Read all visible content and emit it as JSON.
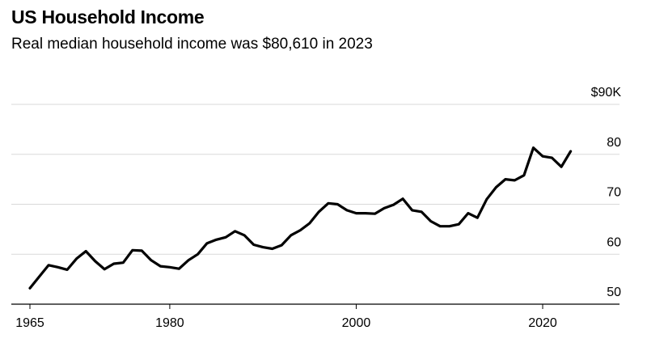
{
  "header": {
    "title": "US Household Income",
    "subtitle": "Real median household income was $80,610 in 2023"
  },
  "chart_data": {
    "type": "line",
    "title": "US Household Income",
    "subtitle": "Real median household income was $80,610 in 2023",
    "xlabel": "",
    "ylabel": "",
    "xlim": [
      1965,
      2028
    ],
    "ylim": [
      50,
      90
    ],
    "x_ticks": [
      1965,
      1980,
      2000,
      2020
    ],
    "x_tick_labels": [
      "1965",
      "1980",
      "2000",
      "2020"
    ],
    "y_ticks": [
      50,
      60,
      70,
      80,
      90
    ],
    "y_tick_labels": [
      "50",
      "60",
      "70",
      "80",
      "$90K"
    ],
    "grid": true,
    "line_color": "#000000",
    "grid_color": "#d9d9d9",
    "x": [
      1965,
      1966,
      1967,
      1968,
      1969,
      1970,
      1971,
      1972,
      1973,
      1974,
      1975,
      1976,
      1977,
      1978,
      1979,
      1980,
      1981,
      1982,
      1983,
      1984,
      1985,
      1986,
      1987,
      1988,
      1989,
      1990,
      1991,
      1992,
      1993,
      1994,
      1995,
      1996,
      1997,
      1998,
      1999,
      2000,
      2001,
      2002,
      2003,
      2004,
      2005,
      2006,
      2007,
      2008,
      2009,
      2010,
      2011,
      2012,
      2013,
      2014,
      2015,
      2016,
      2017,
      2018,
      2019,
      2020,
      2021,
      2022,
      2023
    ],
    "values": [
      53.2,
      55.5,
      57.8,
      57.4,
      56.9,
      59.1,
      60.6,
      58.6,
      57.0,
      58.1,
      58.3,
      60.8,
      60.7,
      58.8,
      57.6,
      57.4,
      57.1,
      58.8,
      60.0,
      62.2,
      62.9,
      63.4,
      64.6,
      63.8,
      61.9,
      61.4,
      61.1,
      61.8,
      63.8,
      64.8,
      66.2,
      68.5,
      70.2,
      70.0,
      68.8,
      68.2,
      68.2,
      68.1,
      69.2,
      69.9,
      71.1,
      68.8,
      68.5,
      66.6,
      65.6,
      65.6,
      66.0,
      68.2,
      67.3,
      71.0,
      73.4,
      75.0,
      74.8,
      75.8,
      81.3,
      79.6,
      79.3,
      77.5,
      80.61
    ]
  }
}
